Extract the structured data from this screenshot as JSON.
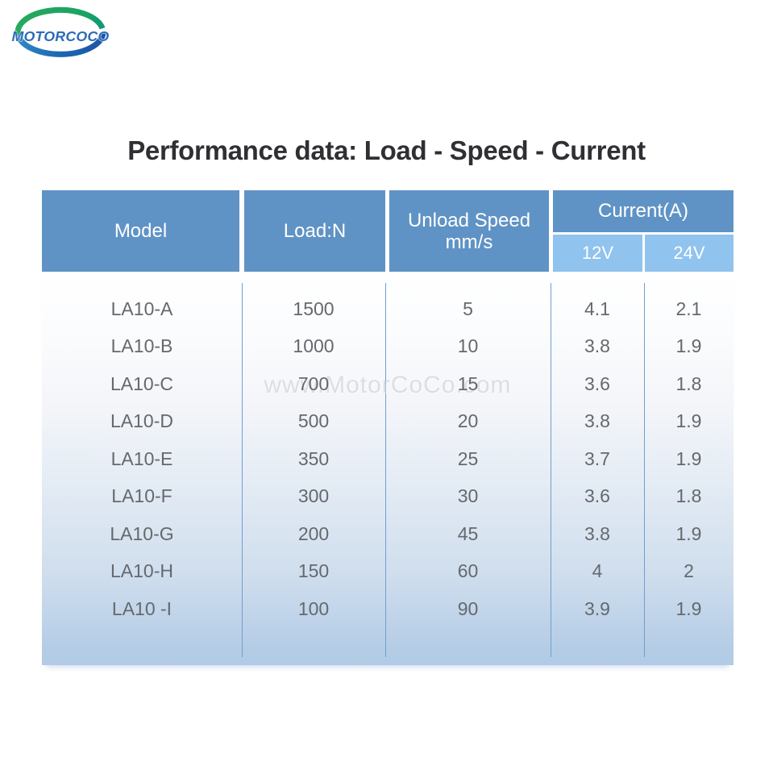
{
  "logo": {
    "brand": "MOTORCOCO",
    "arc_green": "#22a45c",
    "arc_green_end": "#0e9a77",
    "arc_blue": "#1d5dad",
    "arc_blue_start": "#2f86c4",
    "text_color": "#2d6db8"
  },
  "title": "Performance data: Load - Speed - Current",
  "watermark": "www.MotorCoCo.com",
  "table": {
    "columns": {
      "model": "Model",
      "load": "Load:N",
      "speed_line1": "Unload Speed",
      "speed_line2": "mm/s",
      "current_group": "Current(A)",
      "current_12v": "12V",
      "current_24v": "24V"
    },
    "rows": [
      {
        "model": "LA10-A",
        "load": "1500",
        "speed": "5",
        "a12": "4.1",
        "a24": "2.1"
      },
      {
        "model": "LA10-B",
        "load": "1000",
        "speed": "10",
        "a12": "3.8",
        "a24": "1.9"
      },
      {
        "model": "LA10-C",
        "load": "700",
        "speed": "15",
        "a12": "3.6",
        "a24": "1.8"
      },
      {
        "model": "LA10-D",
        "load": "500",
        "speed": "20",
        "a12": "3.8",
        "a24": "1.9"
      },
      {
        "model": "LA10-E",
        "load": "350",
        "speed": "25",
        "a12": "3.7",
        "a24": "1.9"
      },
      {
        "model": "LA10-F",
        "load": "300",
        "speed": "30",
        "a12": "3.6",
        "a24": "1.8"
      },
      {
        "model": "LA10-G",
        "load": "200",
        "speed": "45",
        "a12": "3.8",
        "a24": "1.9"
      },
      {
        "model": "LA10-H",
        "load": "150",
        "speed": "60",
        "a12": "4",
        "a24": "2"
      },
      {
        "model": "LA10 -I",
        "load": "100",
        "speed": "90",
        "a12": "3.9",
        "a24": "1.9"
      }
    ]
  },
  "colors": {
    "header_bg": "#6093c5",
    "subheader_bg": "#90c3ee",
    "divider": "#6f9fd0",
    "body_text": "#65696e",
    "title_text": "#2f2f34"
  }
}
